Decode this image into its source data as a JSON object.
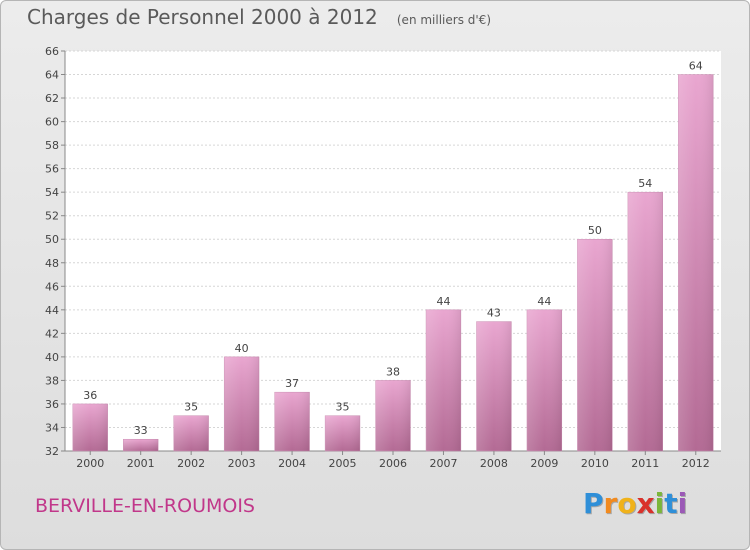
{
  "header": {
    "title": "Charges de Personnel 2000 à 2012",
    "subtitle": "(en milliers d'€)"
  },
  "footer": {
    "commune": "BERVILLE-EN-ROUMOIS",
    "logo_letters": [
      "P",
      "r",
      "o",
      "x",
      "i",
      "t",
      "i"
    ],
    "logo_colors": [
      "#2f8fd8",
      "#f28a1e",
      "#f0b21a",
      "#d9312b",
      "#7bb63a",
      "#2f8fd8",
      "#9b59b6"
    ]
  },
  "chart_data": {
    "type": "bar",
    "categories": [
      "2000",
      "2001",
      "2002",
      "2003",
      "2004",
      "2005",
      "2006",
      "2007",
      "2008",
      "2009",
      "2010",
      "2011",
      "2012"
    ],
    "values": [
      36,
      33,
      35,
      40,
      37,
      35,
      38,
      44,
      43,
      44,
      50,
      54,
      64
    ],
    "ylim": [
      32,
      66
    ],
    "yticks": [
      32,
      34,
      36,
      38,
      40,
      42,
      44,
      46,
      48,
      50,
      52,
      54,
      56,
      58,
      60,
      62,
      64,
      66
    ],
    "grid": true,
    "bar_color_top": "#e9a6d0",
    "bar_color_bottom": "#b36a94"
  }
}
